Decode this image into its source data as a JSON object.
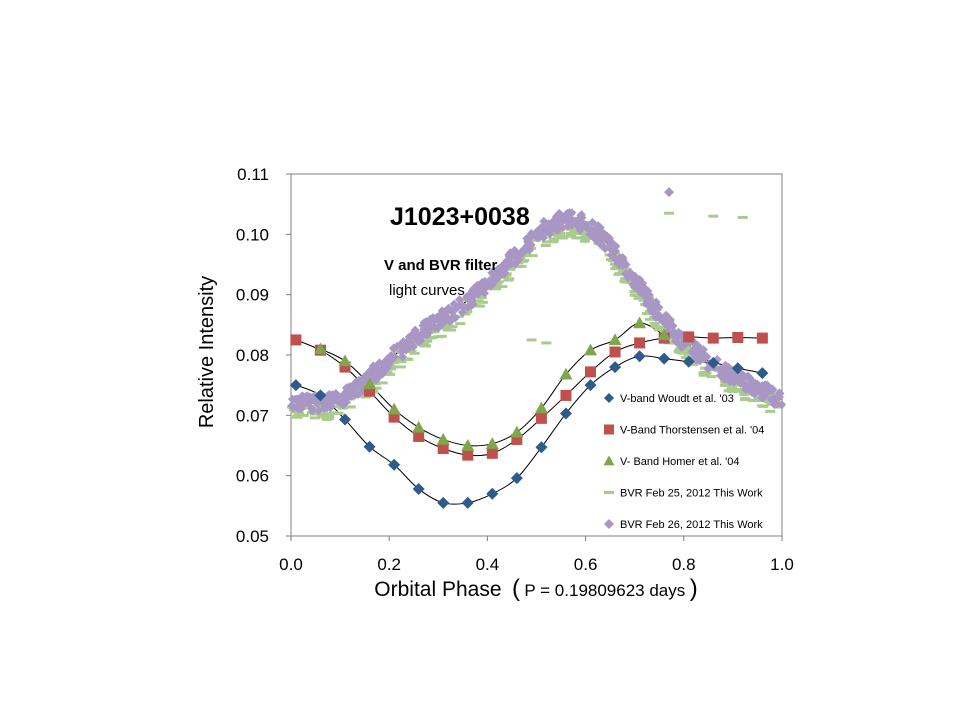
{
  "chart_data": {
    "type": "scatter",
    "title": "J1023+0038",
    "annotation_line1": "V and BVR filter",
    "annotation_line2": "light curves",
    "ylabel": "Relative Intensity",
    "xlabel_main": "Orbital Phase",
    "xlabel_open": "(",
    "xlabel_detail": "P = 0.19809623 days",
    "xlabel_close": ")",
    "xlim": [
      0.0,
      1.0
    ],
    "ylim": [
      0.05,
      0.11
    ],
    "xticks": [
      "0.0",
      "0.2",
      "0.4",
      "0.6",
      "0.8",
      "1.0"
    ],
    "yticks": [
      "0.05",
      "0.06",
      "0.07",
      "0.08",
      "0.09",
      "0.10",
      "0.11"
    ],
    "grid": false,
    "legend_position": "bottom-right",
    "series": [
      {
        "name": "V-band  Woudt et al. '03",
        "marker": "diamond",
        "color": "#2e5c8a",
        "x": [
          0.01,
          0.06,
          0.11,
          0.16,
          0.21,
          0.26,
          0.31,
          0.36,
          0.41,
          0.46,
          0.51,
          0.56,
          0.61,
          0.66,
          0.71,
          0.76,
          0.81,
          0.86,
          0.91,
          0.96
        ],
        "y": [
          0.075,
          0.0733,
          0.0693,
          0.0648,
          0.0618,
          0.0578,
          0.0555,
          0.0555,
          0.057,
          0.0596,
          0.0647,
          0.0703,
          0.075,
          0.078,
          0.0798,
          0.0794,
          0.0789,
          0.0787,
          0.0778,
          0.077
        ]
      },
      {
        "name": "V-Band  Thorstensen et al. '04",
        "marker": "square",
        "color": "#c0504d",
        "x": [
          0.01,
          0.06,
          0.11,
          0.16,
          0.21,
          0.26,
          0.31,
          0.36,
          0.41,
          0.46,
          0.51,
          0.56,
          0.61,
          0.66,
          0.71,
          0.76,
          0.81,
          0.86,
          0.91,
          0.96
        ],
        "y": [
          0.0825,
          0.0808,
          0.078,
          0.074,
          0.0697,
          0.0665,
          0.0645,
          0.0634,
          0.0637,
          0.066,
          0.0695,
          0.0733,
          0.0772,
          0.0805,
          0.082,
          0.0828,
          0.083,
          0.0828,
          0.0829,
          0.0828
        ]
      },
      {
        "name": "V- Band  Homer et al. '04",
        "marker": "triangle",
        "color": "#7fa64a",
        "x": [
          0.06,
          0.11,
          0.16,
          0.21,
          0.26,
          0.31,
          0.36,
          0.41,
          0.46,
          0.51,
          0.56,
          0.61,
          0.66,
          0.71,
          0.76
        ],
        "y": [
          0.081,
          0.079,
          0.0752,
          0.071,
          0.068,
          0.066,
          0.065,
          0.0653,
          0.0672,
          0.0712,
          0.0768,
          0.0808,
          0.0825,
          0.0853,
          0.0833
        ]
      },
      {
        "name": "BVR Feb 25, 2012 This Work",
        "marker": "dash",
        "color": "#a9cc8c"
      },
      {
        "name": "BVR Feb 26, 2012 This Work",
        "marker": "diamond",
        "color": "#a897c4"
      }
    ],
    "fit_color": "#000000"
  }
}
